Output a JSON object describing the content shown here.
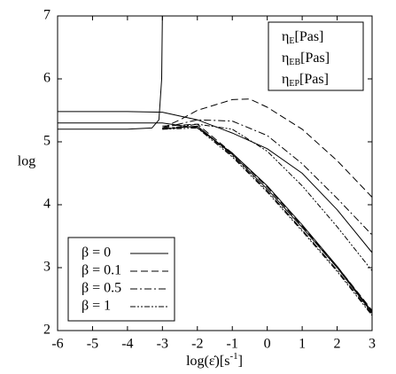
{
  "chart_data": {
    "type": "line",
    "ylabel": "log",
    "xlabel": {
      "main": "log(ε̇)[s",
      "sup": "-1",
      "end": "]"
    },
    "xlim": [
      -6,
      3
    ],
    "xticks": [
      -6,
      -5,
      -4,
      -3,
      -2,
      -1,
      0,
      1,
      2,
      3
    ],
    "ylim": [
      2,
      7
    ],
    "yticks": [
      2,
      3,
      4,
      5,
      6,
      7
    ],
    "color": "#000000",
    "eta_labels": [
      {
        "symbol": "η",
        "sub": "E",
        "unit": "[Pas]"
      },
      {
        "symbol": "η",
        "sub": "EB",
        "unit": "[Pas]"
      },
      {
        "symbol": "η",
        "sub": "EP",
        "unit": "[Pas]"
      }
    ],
    "legend": [
      {
        "label": "β = 0",
        "dash": "solid"
      },
      {
        "label": "β = 0.1",
        "dash": "dashed"
      },
      {
        "label": "β = 0.5",
        "dash": "dashdot"
      },
      {
        "label": "β = 1",
        "dash": "dashdotdot"
      }
    ],
    "series": [
      {
        "dash": "solid",
        "x": [
          -6,
          -5,
          -4,
          -3,
          -2,
          -1,
          0,
          1,
          2,
          3
        ],
        "values": [
          5.48,
          5.48,
          5.48,
          5.47,
          5.35,
          5.14,
          4.89,
          4.5,
          3.92,
          3.24
        ]
      },
      {
        "dash": "solid",
        "x": [
          -6,
          -5,
          -4,
          -3,
          -2,
          -1,
          0,
          1,
          2,
          3
        ],
        "values": [
          5.3,
          5.3,
          5.3,
          5.3,
          5.22,
          4.82,
          4.3,
          3.68,
          3.02,
          2.3
        ]
      },
      {
        "dash": "solid",
        "x": [
          -6,
          -5,
          -4,
          -3.3,
          -3.1,
          -3.02,
          -3
        ],
        "values": [
          5.2,
          5.2,
          5.2,
          5.22,
          5.35,
          6.0,
          7
        ]
      },
      {
        "dash": "solid",
        "x": [
          -3,
          -2,
          -1,
          0,
          1,
          2,
          3
        ],
        "values": [
          5.2,
          5.25,
          4.8,
          4.25,
          3.64,
          3.0,
          2.28
        ]
      },
      {
        "dash": "dashed",
        "x": [
          -3,
          -2.5,
          -2,
          -1,
          -0.5,
          0,
          1,
          2,
          3
        ],
        "values": [
          5.22,
          5.35,
          5.5,
          5.67,
          5.68,
          5.55,
          5.2,
          4.7,
          4.12
        ]
      },
      {
        "dash": "dashed",
        "x": [
          -3,
          -2,
          -1,
          0,
          1,
          2,
          3
        ],
        "values": [
          5.25,
          5.28,
          4.82,
          4.28,
          3.66,
          3.02,
          2.32
        ]
      },
      {
        "dash": "dashdot",
        "x": [
          -3,
          -2,
          -1,
          0,
          1,
          2,
          3
        ],
        "values": [
          5.22,
          5.35,
          5.33,
          5.1,
          4.65,
          4.1,
          3.52
        ]
      },
      {
        "dash": "dashdot",
        "x": [
          -3,
          -2,
          -1,
          0,
          1,
          2,
          3
        ],
        "values": [
          5.22,
          5.24,
          4.78,
          4.22,
          3.6,
          2.96,
          2.26
        ]
      },
      {
        "dash": "dashdotdot",
        "x": [
          -3,
          -2,
          -1,
          0,
          1,
          2,
          3
        ],
        "values": [
          5.2,
          5.28,
          5.2,
          4.85,
          4.3,
          3.65,
          2.95
        ]
      },
      {
        "dash": "dashdotdot",
        "x": [
          -3,
          -2,
          -1,
          0,
          1,
          2,
          3
        ],
        "values": [
          5.2,
          5.22,
          4.76,
          4.2,
          3.58,
          2.94,
          2.24
        ]
      }
    ]
  }
}
